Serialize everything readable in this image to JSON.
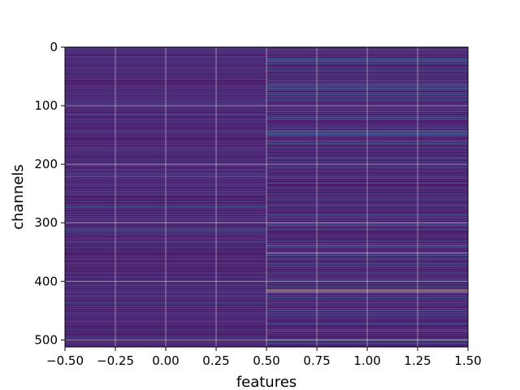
{
  "chart_data": {
    "type": "heatmap",
    "title": "",
    "xlabel": "features",
    "ylabel": "channels",
    "xlim": [
      -0.5,
      1.5
    ],
    "ylim": [
      512,
      0
    ],
    "x_ticks": [
      -0.5,
      -0.25,
      0.0,
      0.25,
      0.5,
      0.75,
      1.0,
      1.25,
      1.5
    ],
    "x_tick_labels": [
      "−0.50",
      "−0.25",
      "0.00",
      "0.25",
      "0.50",
      "0.75",
      "1.00",
      "1.25",
      "1.50"
    ],
    "y_ticks": [
      0,
      100,
      200,
      300,
      400,
      500
    ],
    "y_tick_labels": [
      "0",
      "100",
      "200",
      "300",
      "400",
      "500"
    ],
    "grid": true,
    "colormap": "viridis",
    "columns": [
      0,
      1
    ],
    "rows": 512,
    "background_levels": [
      0.05,
      0.15
    ],
    "highlighted_rows": [
      {
        "feature": 0,
        "channel": 221,
        "value": 0.35
      },
      {
        "feature": 0,
        "channel": 273,
        "value": 0.35
      },
      {
        "feature": 0,
        "channel": 437,
        "value": 0.35
      },
      {
        "feature": 1,
        "channel": 5,
        "value": 0.35
      },
      {
        "feature": 1,
        "channel": 20,
        "value": 0.3
      },
      {
        "feature": 1,
        "channel": 40,
        "value": 0.3
      },
      {
        "feature": 1,
        "channel": 70,
        "value": 0.3
      },
      {
        "feature": 1,
        "channel": 143,
        "value": 0.5
      },
      {
        "feature": 1,
        "channel": 160,
        "value": 0.4
      },
      {
        "feature": 1,
        "channel": 165,
        "value": 0.45
      },
      {
        "feature": 1,
        "channel": 172,
        "value": 0.3
      },
      {
        "feature": 1,
        "channel": 232,
        "value": 0.3
      },
      {
        "feature": 1,
        "channel": 305,
        "value": 0.5
      },
      {
        "feature": 1,
        "channel": 352,
        "value": 0.85
      },
      {
        "feature": 1,
        "channel": 415,
        "value": 1.0
      },
      {
        "feature": 1,
        "channel": 418,
        "value": 0.95
      },
      {
        "feature": 1,
        "channel": 450,
        "value": 0.3
      },
      {
        "feature": 1,
        "channel": 485,
        "value": 0.3
      }
    ]
  }
}
